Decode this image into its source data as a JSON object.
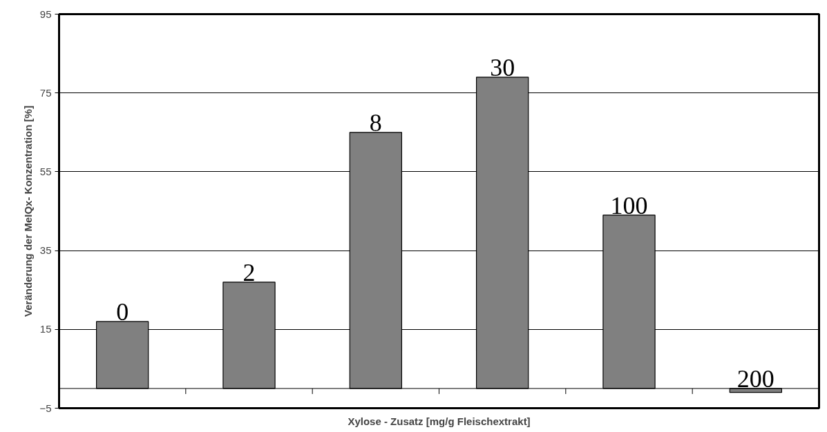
{
  "chart_data": {
    "type": "bar",
    "xlabel": "Xylose - Zusatz [mg/g Fleischextrakt]",
    "ylabel": "Veränderung der MeIQx- Konzentration [%]",
    "categories": [
      "0",
      "2",
      "8",
      "30",
      "100",
      "200"
    ],
    "values": [
      17,
      27,
      65,
      79,
      44,
      -1
    ],
    "color": "#808080",
    "ylim": [
      -5,
      95
    ],
    "yticks": [
      -5,
      15,
      35,
      55,
      75,
      95
    ],
    "grid": "y"
  }
}
